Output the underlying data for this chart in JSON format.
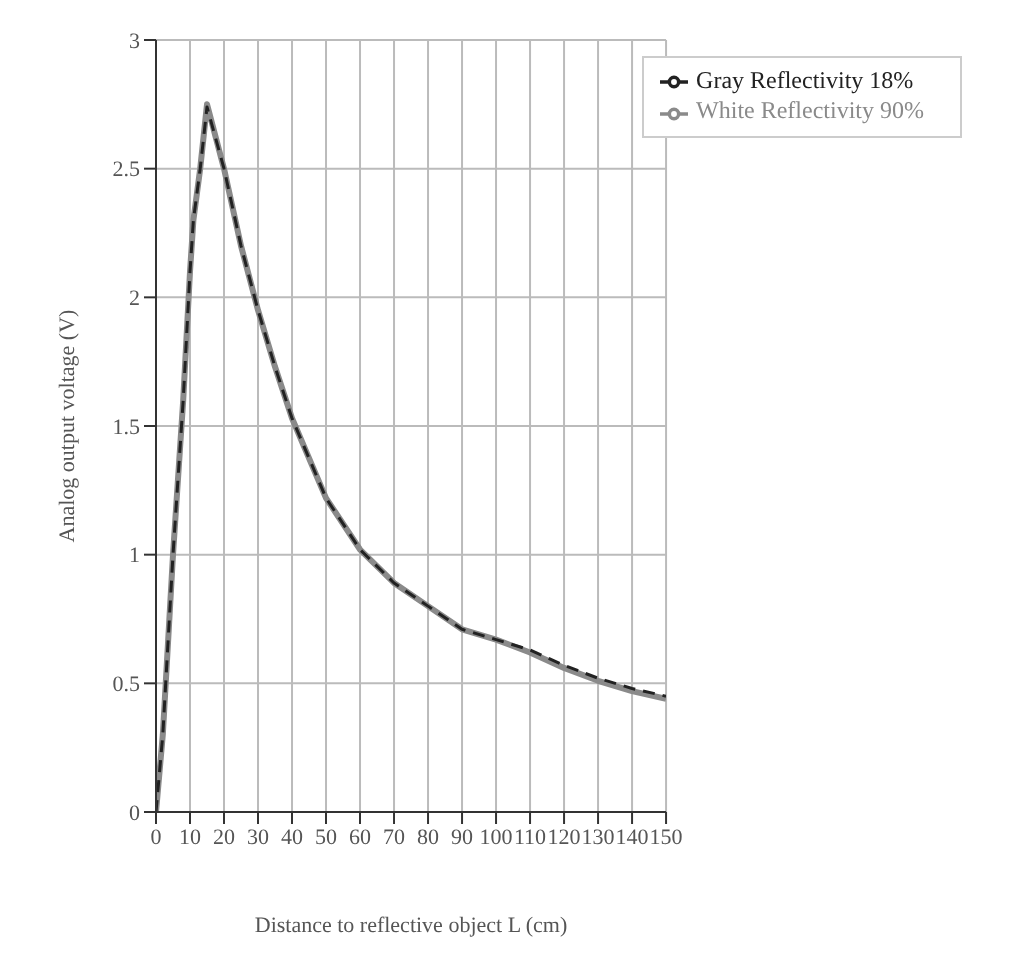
{
  "chart_data": {
    "type": "line",
    "xlabel": "Distance to reflective object L (cm)",
    "ylabel": "Analog output voltage (V)",
    "x": [
      0,
      2,
      5,
      8,
      10,
      11,
      13,
      15,
      20,
      25,
      30,
      35,
      40,
      50,
      60,
      70,
      80,
      90,
      100,
      110,
      120,
      130,
      140,
      150
    ],
    "series": [
      {
        "name": "White Reflectivity 90%",
        "color": "#8a8a8a",
        "line_style": "solid",
        "values": [
          0,
          0.3,
          1.0,
          1.6,
          2.1,
          2.3,
          2.5,
          2.75,
          2.5,
          2.2,
          1.95,
          1.73,
          1.53,
          1.22,
          1.02,
          0.89,
          0.8,
          0.71,
          0.67,
          0.62,
          0.56,
          0.51,
          0.47,
          0.44
        ]
      },
      {
        "name": "Gray Reflectivity 18%",
        "color": "#222222",
        "line_style": "dashed",
        "values": [
          0,
          0.3,
          1.0,
          1.6,
          2.1,
          2.3,
          2.5,
          2.74,
          2.5,
          2.2,
          1.95,
          1.73,
          1.53,
          1.22,
          1.02,
          0.89,
          0.8,
          0.71,
          0.67,
          0.63,
          0.57,
          0.52,
          0.48,
          0.45
        ]
      }
    ],
    "xlim": [
      0,
      150
    ],
    "xticks": [
      0,
      10,
      20,
      30,
      40,
      50,
      60,
      70,
      80,
      90,
      100,
      110,
      120,
      130,
      140,
      150
    ],
    "ylim": [
      0,
      3
    ],
    "yticks": [
      0,
      0.5,
      1,
      1.5,
      2,
      2.5,
      3
    ],
    "grid": true,
    "legend": "top right"
  }
}
